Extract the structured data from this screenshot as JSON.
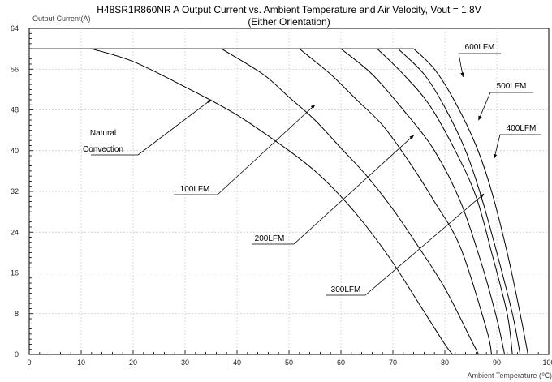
{
  "chart_data": {
    "type": "line",
    "title": "H48SR1R860NR A Output Current vs. Ambient Temperature and Air Velocity, Vout = 1.8V",
    "subtitle": "(Either Orientation)",
    "xlabel": "Ambient Temperature (℃)",
    "ylabel": "Output Current(A)",
    "xlim": [
      0,
      100
    ],
    "ylim": [
      0,
      64
    ],
    "xticks": [
      0,
      10,
      20,
      30,
      40,
      50,
      60,
      70,
      80,
      90,
      100
    ],
    "yticks": [
      0,
      8,
      16,
      24,
      32,
      40,
      48,
      56,
      64
    ],
    "grid": true,
    "series": [
      {
        "name": "Natural Convection",
        "x": [
          12,
          20,
          30,
          40,
          50,
          55,
          60,
          65,
          70,
          75,
          80,
          81.5
        ],
        "y": [
          60,
          57.5,
          52.5,
          47,
          40,
          36,
          31,
          25,
          18,
          10,
          2,
          0
        ]
      },
      {
        "name": "100LFM",
        "x": [
          37,
          45,
          50,
          55,
          60,
          65,
          70,
          75,
          80,
          85,
          86.5
        ],
        "y": [
          60,
          55,
          50.5,
          46,
          40.5,
          35,
          28.5,
          21,
          13,
          3,
          0
        ]
      },
      {
        "name": "200LFM",
        "x": [
          52,
          58,
          63,
          68,
          73,
          78,
          83,
          88,
          89
        ],
        "y": [
          60,
          55,
          50,
          45,
          38,
          30,
          21,
          5,
          0
        ]
      },
      {
        "name": "300LFM",
        "x": [
          60,
          66,
          72,
          78,
          83,
          87,
          90,
          91.5
        ],
        "y": [
          60,
          55,
          48,
          40,
          30,
          18,
          7,
          0
        ]
      },
      {
        "name": "400LFM",
        "x": [
          67,
          72,
          77,
          82,
          86,
          89,
          92,
          93
        ],
        "y": [
          60,
          55,
          49,
          40,
          31,
          20,
          8,
          0
        ]
      },
      {
        "name": "500LFM",
        "x": [
          71,
          76,
          80,
          84,
          87,
          90,
          93,
          94.5
        ],
        "y": [
          60,
          55,
          48.5,
          40,
          31,
          20,
          8,
          0
        ]
      },
      {
        "name": "600LFM",
        "x": [
          74,
          78,
          82,
          86,
          89,
          92,
          94.5,
          96
        ],
        "y": [
          60,
          56,
          49.5,
          41,
          32,
          20,
          8,
          0
        ]
      }
    ],
    "annotations": [
      {
        "text": "Natural",
        "target": [
          35,
          50
        ]
      },
      {
        "text": "Convection",
        "target": [
          35,
          50
        ]
      },
      {
        "text": "100LFM",
        "target": [
          55,
          49
        ]
      },
      {
        "text": "200LFM",
        "target": [
          74,
          43
        ]
      },
      {
        "text": "300LFM",
        "target": [
          87.5,
          31.5
        ]
      },
      {
        "text": "400LFM",
        "target": [
          89.5,
          38.5
        ]
      },
      {
        "text": "500LFM",
        "target": [
          86.5,
          46
        ]
      },
      {
        "text": "600LFM",
        "target": [
          83.5,
          54.5
        ]
      }
    ]
  }
}
